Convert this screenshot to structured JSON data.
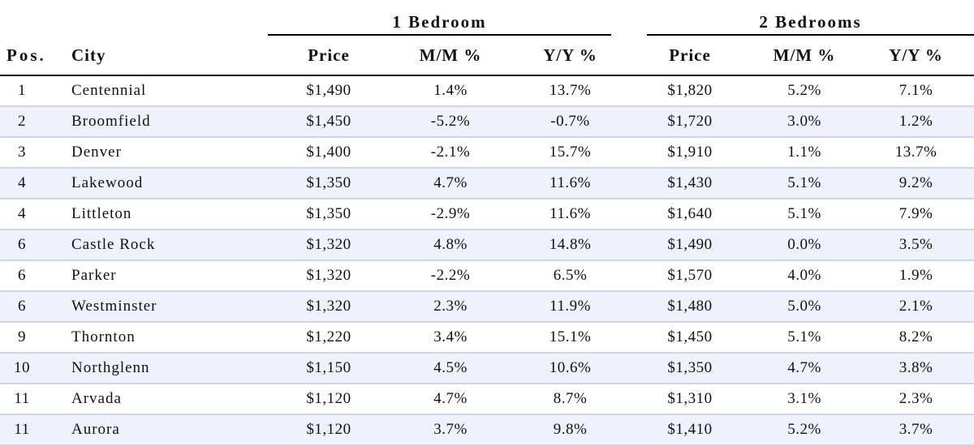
{
  "groups": {
    "one_bedroom": "1 Bedroom",
    "two_bedrooms": "2 Bedrooms"
  },
  "headers": {
    "pos": "Pos.",
    "city": "City",
    "price_1": "Price",
    "mm_1": "M/M %",
    "yy_1": "Y/Y %",
    "price_2": "Price",
    "mm_2": "M/M %",
    "yy_2": "Y/Y %"
  },
  "rows": [
    {
      "pos": "1",
      "city": "Centennial",
      "price_1": "$1,490",
      "mm_1": "1.4%",
      "yy_1": "13.7%",
      "price_2": "$1,820",
      "mm_2": "5.2%",
      "yy_2": "7.1%"
    },
    {
      "pos": "2",
      "city": "Broomfield",
      "price_1": "$1,450",
      "mm_1": "-5.2%",
      "yy_1": "-0.7%",
      "price_2": "$1,720",
      "mm_2": "3.0%",
      "yy_2": "1.2%"
    },
    {
      "pos": "3",
      "city": "Denver",
      "price_1": "$1,400",
      "mm_1": "-2.1%",
      "yy_1": "15.7%",
      "price_2": "$1,910",
      "mm_2": "1.1%",
      "yy_2": "13.7%"
    },
    {
      "pos": "4",
      "city": "Lakewood",
      "price_1": "$1,350",
      "mm_1": "4.7%",
      "yy_1": "11.6%",
      "price_2": "$1,430",
      "mm_2": "5.1%",
      "yy_2": "9.2%"
    },
    {
      "pos": "4",
      "city": "Littleton",
      "price_1": "$1,350",
      "mm_1": "-2.9%",
      "yy_1": "11.6%",
      "price_2": "$1,640",
      "mm_2": "5.1%",
      "yy_2": "7.9%"
    },
    {
      "pos": "6",
      "city": "Castle Rock",
      "price_1": "$1,320",
      "mm_1": "4.8%",
      "yy_1": "14.8%",
      "price_2": "$1,490",
      "mm_2": "0.0%",
      "yy_2": "3.5%"
    },
    {
      "pos": "6",
      "city": "Parker",
      "price_1": "$1,320",
      "mm_1": "-2.2%",
      "yy_1": "6.5%",
      "price_2": "$1,570",
      "mm_2": "4.0%",
      "yy_2": "1.9%"
    },
    {
      "pos": "6",
      "city": "Westminster",
      "price_1": "$1,320",
      "mm_1": "2.3%",
      "yy_1": "11.9%",
      "price_2": "$1,480",
      "mm_2": "5.0%",
      "yy_2": "2.1%"
    },
    {
      "pos": "9",
      "city": "Thornton",
      "price_1": "$1,220",
      "mm_1": "3.4%",
      "yy_1": "15.1%",
      "price_2": "$1,450",
      "mm_2": "5.1%",
      "yy_2": "8.2%"
    },
    {
      "pos": "10",
      "city": "Northglenn",
      "price_1": "$1,150",
      "mm_1": "4.5%",
      "yy_1": "10.6%",
      "price_2": "$1,350",
      "mm_2": "4.7%",
      "yy_2": "3.8%"
    },
    {
      "pos": "11",
      "city": "Arvada",
      "price_1": "$1,120",
      "mm_1": "4.7%",
      "yy_1": "8.7%",
      "price_2": "$1,310",
      "mm_2": "3.1%",
      "yy_2": "2.3%"
    },
    {
      "pos": "11",
      "city": "Aurora",
      "price_1": "$1,120",
      "mm_1": "3.7%",
      "yy_1": "9.8%",
      "price_2": "$1,410",
      "mm_2": "5.2%",
      "yy_2": "3.7%"
    }
  ],
  "colors": {
    "row_stripe": "#f0f2fb",
    "row_divider": "#c7d6ea",
    "header_rule": "#000000"
  }
}
